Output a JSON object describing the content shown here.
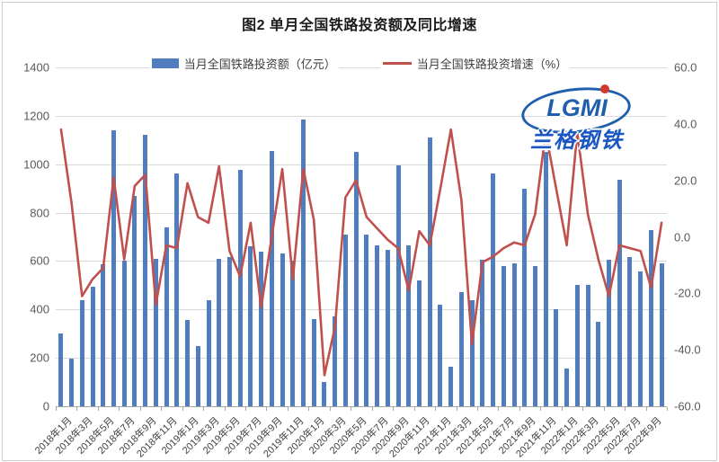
{
  "title": "图2 单月全国铁路投资额及同比增速",
  "legend": {
    "bar_label": "当月全国铁路投资额（亿元）",
    "line_label": "当月全国铁路投资增速（%）"
  },
  "watermark": {
    "line1": "LGMI",
    "line2": "兰格钢铁"
  },
  "colors": {
    "bar": "#4f7dbe",
    "line": "#c0504d",
    "gridline": "#d9d9d9",
    "axis": "#a6a6a6",
    "logo_blue": "#1f5fae"
  },
  "chart_data": {
    "type": "bar+line combo",
    "title": "图2 单月全国铁路投资额及同比增速",
    "grid": true,
    "legend_position": "top",
    "categories": [
      "2018年1月",
      "2018年2月",
      "2018年3月",
      "2018年4月",
      "2018年5月",
      "2018年6月",
      "2018年7月",
      "2018年8月",
      "2018年9月",
      "2018年10月",
      "2018年11月",
      "2018年12月",
      "2019年1月",
      "2019年2月",
      "2019年3月",
      "2019年4月",
      "2019年5月",
      "2019年6月",
      "2019年7月",
      "2019年8月",
      "2019年9月",
      "2019年10月",
      "2019年11月",
      "2019年12月",
      "2020年1月",
      "2020年2月",
      "2020年3月",
      "2020年4月",
      "2020年5月",
      "2020年6月",
      "2020年7月",
      "2020年8月",
      "2020年9月",
      "2020年10月",
      "2020年11月",
      "2020年12月",
      "2021年1月",
      "2021年2月",
      "2021年3月",
      "2021年4月",
      "2021年5月",
      "2021年6月",
      "2021年7月",
      "2021年8月",
      "2021年9月",
      "2021年10月",
      "2021年11月",
      "2021年12月",
      "2022年1月",
      "2022年2月",
      "2022年3月",
      "2022年4月",
      "2022年5月",
      "2022年6月",
      "2022年7月",
      "2022年8月",
      "2022年9月",
      "2022年10月"
    ],
    "x_tick_label_every": 2,
    "series": [
      {
        "name": "当月全国铁路投资额（亿元）",
        "type": "bar",
        "axis": "left",
        "color": "#4f7dbe",
        "values": [
          300,
          195,
          440,
          495,
          585,
          1140,
          600,
          870,
          1120,
          610,
          740,
          960,
          355,
          250,
          440,
          610,
          615,
          975,
          660,
          640,
          1055,
          630,
          600,
          1185,
          360,
          100,
          370,
          710,
          1050,
          710,
          665,
          645,
          995,
          665,
          520,
          1110,
          420,
          165,
          470,
          440,
          605,
          960,
          580,
          590,
          900,
          580,
          1050,
          400,
          155,
          500,
          500,
          350,
          605,
          935,
          617,
          558,
          728,
          592
        ]
      },
      {
        "name": "当月全国铁路投资增速（%）",
        "type": "line",
        "axis": "right",
        "color": "#c0504d",
        "values": [
          38,
          12,
          -21,
          -15,
          -11,
          21,
          -8,
          18,
          22,
          -24,
          -3,
          -4,
          19,
          7,
          5,
          25,
          -5,
          -14,
          5,
          -25,
          0,
          24,
          -15,
          24,
          6,
          -49,
          -32,
          14,
          20,
          7,
          3,
          -1,
          -4,
          -19,
          2,
          -3,
          17,
          38,
          13,
          -38,
          -9,
          -7,
          -4,
          -2,
          -3,
          8,
          37,
          17,
          -3,
          37,
          8,
          -8,
          -21,
          -3,
          -4,
          -5,
          -18,
          5
        ]
      }
    ],
    "left_axis": {
      "min": 0,
      "max": 1400,
      "step": 200,
      "tick_labels": [
        "0",
        "200",
        "400",
        "600",
        "800",
        "1000",
        "1200",
        "1400"
      ]
    },
    "right_axis": {
      "min": -60,
      "max": 60,
      "step": 20,
      "tick_labels": [
        "-60.0",
        "-40.0",
        "-20.0",
        "0.0",
        "20.0",
        "40.0",
        "60.0"
      ]
    }
  }
}
